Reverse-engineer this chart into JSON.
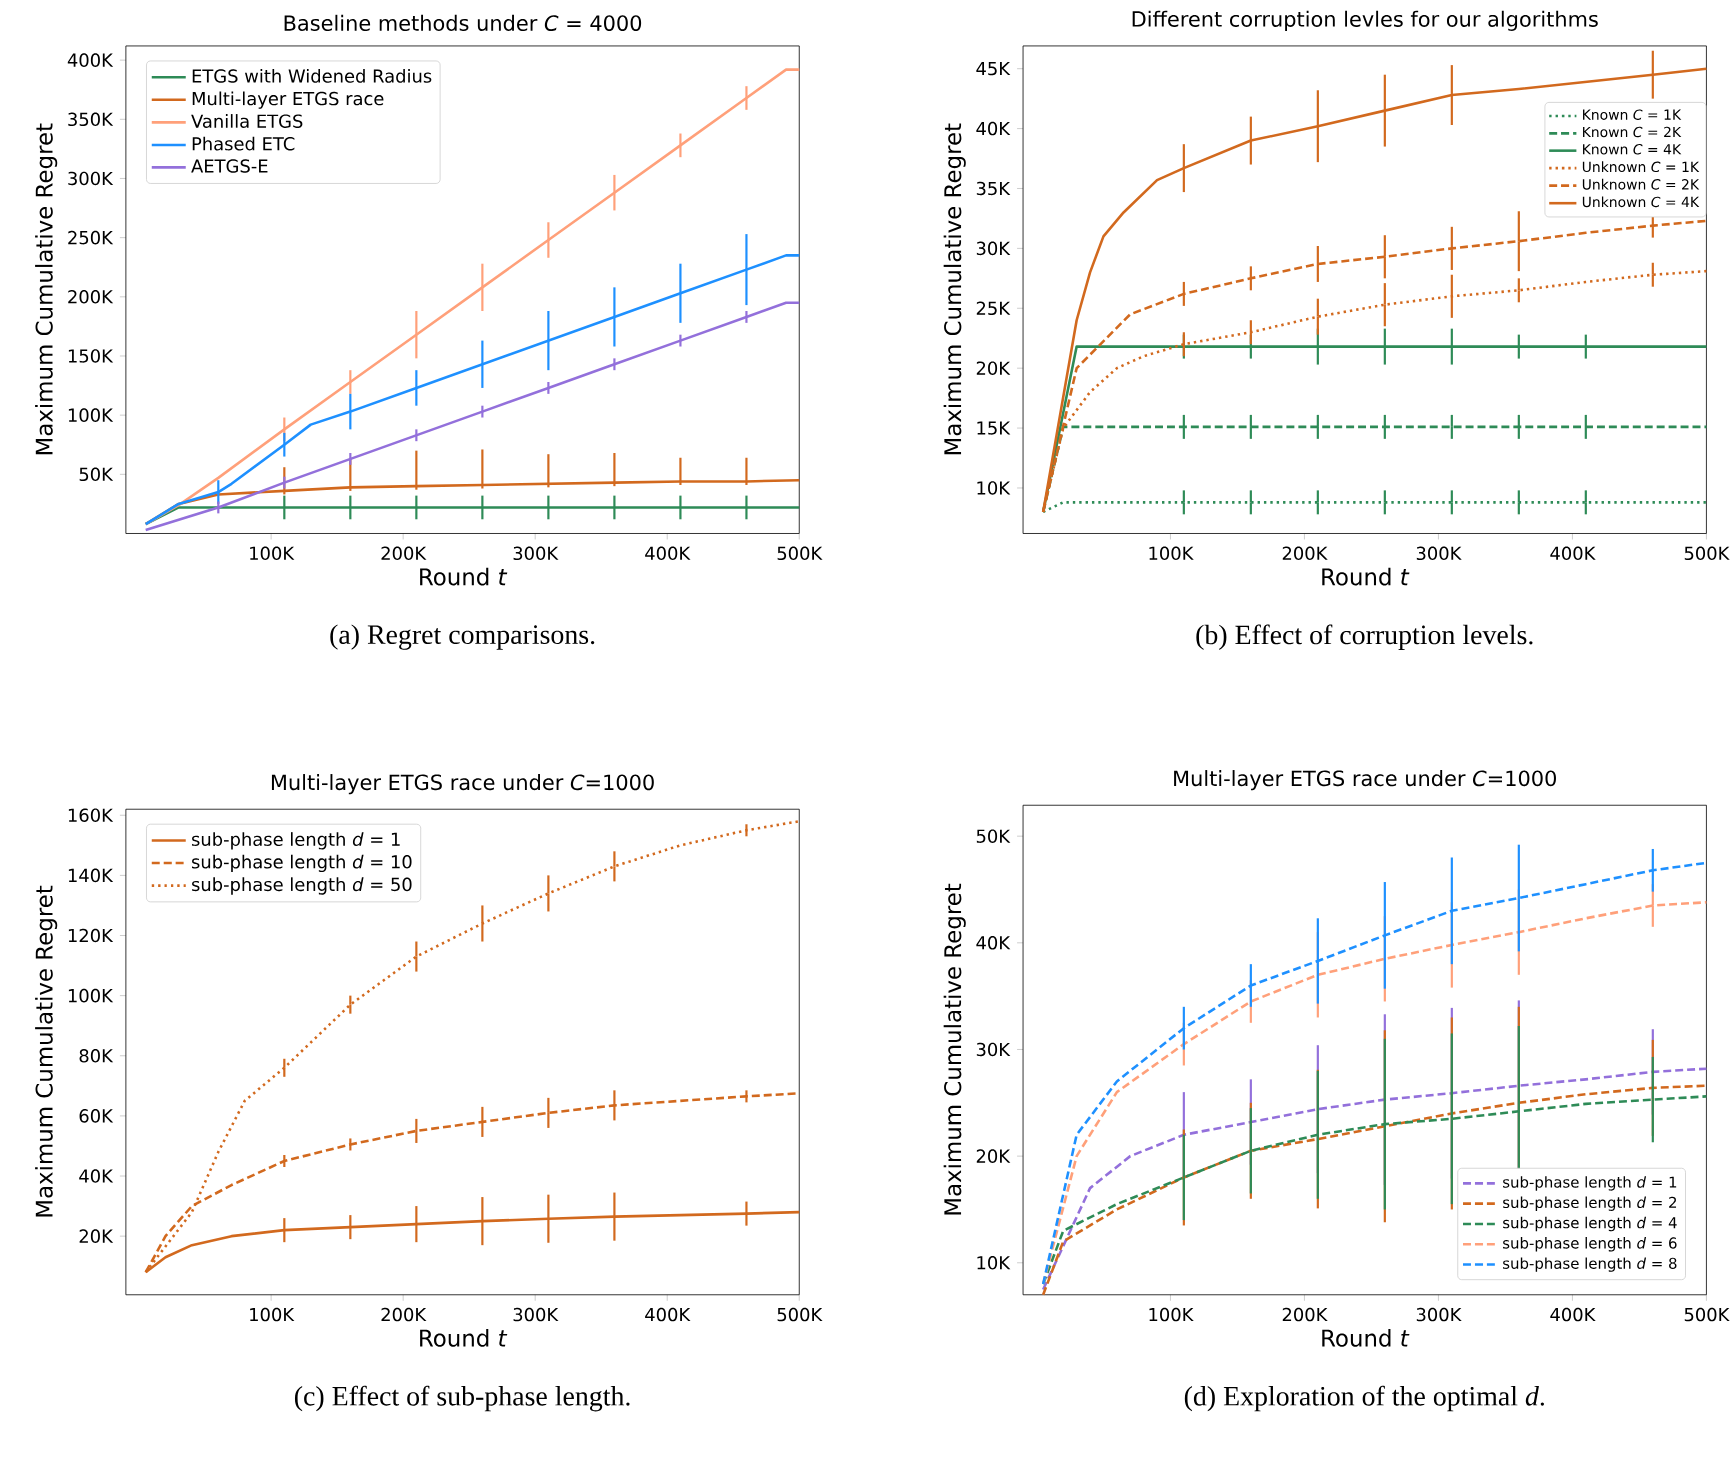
{
  "chart_data": [
    {
      "type": "line",
      "title": "Baseline methods under *C* = 4000",
      "xlabel": "Round *t*",
      "ylabel": "Maximum Cumulative Regret",
      "annotations": [
        "(a)  Regret comparisons."
      ],
      "legend": "top left",
      "xlim": [
        -10000,
        500000
      ],
      "ylim": [
        0,
        412000
      ],
      "xticks": [
        {
          "value": 100000,
          "label": "100K"
        },
        {
          "value": 200000,
          "label": "200K"
        },
        {
          "value": 300000,
          "label": "300K"
        },
        {
          "value": 400000,
          "label": "400K"
        },
        {
          "value": 500000,
          "label": "500K"
        }
      ],
      "yticks": [
        {
          "value": 50000,
          "label": "50K"
        },
        {
          "value": 100000,
          "label": "100K"
        },
        {
          "value": 150000,
          "label": "150K"
        },
        {
          "value": 200000,
          "label": "200K"
        },
        {
          "value": 250000,
          "label": "250K"
        },
        {
          "value": 300000,
          "label": "300K"
        },
        {
          "value": 350000,
          "label": "350K"
        },
        {
          "value": 400000,
          "label": "400K"
        }
      ],
      "series": [
        {
          "name": "ETGS with Widened Radius",
          "color": "#2e8b57",
          "line_style": "solid",
          "x": [
            5000,
            30000,
            110000,
            160000,
            210000,
            260000,
            310000,
            360000,
            410000,
            460000,
            500000
          ],
          "values": [
            8000,
            22000,
            22000,
            22000,
            22000,
            22000,
            22000,
            22000,
            22000,
            22000,
            22000
          ],
          "errors": [
            null,
            null,
            10000,
            10000,
            10000,
            10000,
            10000,
            10000,
            10000,
            10000,
            null
          ]
        },
        {
          "name": "Multi-layer ETGS race",
          "color": "#d2691e",
          "line_style": "solid",
          "x": [
            5000,
            30000,
            60000,
            110000,
            160000,
            210000,
            260000,
            310000,
            360000,
            410000,
            460000,
            500000
          ],
          "values": [
            8000,
            25000,
            33000,
            36000,
            39000,
            40000,
            41000,
            42000,
            43000,
            44000,
            44000,
            45000
          ],
          "errors": [
            null,
            null,
            null,
            [
              33000,
              56000
            ],
            [
              36000,
              64000
            ],
            [
              37000,
              70000
            ],
            [
              38000,
              71000
            ],
            [
              39000,
              67000
            ],
            [
              40000,
              68000
            ],
            [
              41000,
              64000
            ],
            [
              41000,
              64000
            ],
            null
          ]
        },
        {
          "name": "Vanilla ETGS",
          "color": "#ffa07a",
          "line_style": "solid",
          "x": [
            5000,
            30000,
            60000,
            110000,
            160000,
            210000,
            260000,
            310000,
            360000,
            410000,
            460000,
            490000,
            500000
          ],
          "values": [
            8000,
            24000,
            47000,
            88000,
            128000,
            168000,
            208000,
            248000,
            288000,
            328000,
            368000,
            392000,
            392000
          ],
          "errors": [
            null,
            null,
            null,
            10000,
            10000,
            20000,
            20000,
            15000,
            15000,
            10000,
            10000,
            null,
            null
          ]
        },
        {
          "name": "Phased ETC",
          "color": "#1e90ff",
          "line_style": "solid",
          "x": [
            5000,
            30000,
            60000,
            70000,
            110000,
            130000,
            160000,
            210000,
            260000,
            310000,
            360000,
            410000,
            460000,
            490000,
            500000
          ],
          "values": [
            8000,
            25000,
            35000,
            42000,
            75000,
            92000,
            103000,
            123000,
            143000,
            163000,
            183000,
            203000,
            223000,
            235000,
            235000
          ],
          "errors": [
            null,
            null,
            10000,
            null,
            10000,
            null,
            15000,
            15000,
            20000,
            25000,
            25000,
            25000,
            30000,
            null,
            null
          ]
        },
        {
          "name": "AETGS-E",
          "color": "#9370db",
          "line_style": "solid",
          "x": [
            5000,
            60000,
            110000,
            160000,
            210000,
            260000,
            310000,
            360000,
            410000,
            460000,
            490000,
            500000
          ],
          "values": [
            3000,
            22000,
            43000,
            63000,
            83000,
            103000,
            123000,
            143000,
            163000,
            183000,
            195000,
            195000
          ],
          "errors": [
            null,
            5000,
            5000,
            5000,
            5000,
            5000,
            5000,
            5000,
            5000,
            5000,
            null,
            null
          ]
        }
      ]
    },
    {
      "type": "line",
      "title": "Different corruption levles for our algorithms",
      "xlabel": "Round *t*",
      "ylabel": "Maximum Cumulative Regret",
      "annotations": [
        "(b)  Effect of corruption levels."
      ],
      "legend": "top right",
      "xlim": [
        -10000,
        500000
      ],
      "ylim": [
        6200,
        46900
      ],
      "xticks": [
        {
          "value": 100000,
          "label": "100K"
        },
        {
          "value": 200000,
          "label": "200K"
        },
        {
          "value": 300000,
          "label": "300K"
        },
        {
          "value": 400000,
          "label": "400K"
        },
        {
          "value": 500000,
          "label": "500K"
        }
      ],
      "yticks": [
        {
          "value": 10000,
          "label": "10K"
        },
        {
          "value": 15000,
          "label": "15K"
        },
        {
          "value": 20000,
          "label": "20K"
        },
        {
          "value": 25000,
          "label": "25K"
        },
        {
          "value": 30000,
          "label": "30K"
        },
        {
          "value": 35000,
          "label": "35K"
        },
        {
          "value": 40000,
          "label": "40K"
        },
        {
          "value": 45000,
          "label": "45K"
        }
      ],
      "series": [
        {
          "name": "Known *C* = 1K",
          "color": "#2e8b57",
          "line_style": "dotted",
          "x": [
            5000,
            20000,
            110000,
            160000,
            210000,
            260000,
            310000,
            360000,
            410000,
            500000
          ],
          "values": [
            8000,
            8800,
            8800,
            8800,
            8800,
            8800,
            8800,
            8800,
            8800,
            8800
          ],
          "errors": [
            null,
            null,
            1000,
            1000,
            1000,
            1000,
            1000,
            1000,
            1000,
            null
          ]
        },
        {
          "name": "Known *C* = 2K",
          "color": "#2e8b57",
          "line_style": "dashed",
          "x": [
            5000,
            20000,
            110000,
            160000,
            210000,
            260000,
            310000,
            360000,
            410000,
            500000
          ],
          "values": [
            8000,
            15100,
            15100,
            15100,
            15100,
            15100,
            15100,
            15100,
            15100,
            15100
          ],
          "errors": [
            null,
            null,
            1000,
            1000,
            1000,
            1000,
            1000,
            1000,
            1000,
            null
          ]
        },
        {
          "name": "Known *C* = 4K",
          "color": "#2e8b57",
          "line_style": "solid",
          "x": [
            5000,
            30000,
            110000,
            160000,
            210000,
            260000,
            310000,
            360000,
            410000,
            500000
          ],
          "values": [
            8000,
            21800,
            21800,
            21800,
            21800,
            21800,
            21800,
            21800,
            21800,
            21800
          ],
          "errors": [
            null,
            null,
            1000,
            1000,
            1500,
            1500,
            1500,
            1000,
            1000,
            null
          ]
        },
        {
          "name": "Unknown *C* = 1K",
          "color": "#d2691e",
          "line_style": "dotted",
          "x": [
            5000,
            20000,
            40000,
            60000,
            80000,
            110000,
            160000,
            210000,
            260000,
            310000,
            360000,
            410000,
            460000,
            500000
          ],
          "values": [
            8000,
            15000,
            18000,
            20000,
            21000,
            22000,
            23000,
            24300,
            25300,
            26000,
            26500,
            27200,
            27800,
            28100
          ],
          "errors": [
            null,
            null,
            null,
            null,
            null,
            1000,
            1000,
            1500,
            1800,
            1800,
            1000,
            null,
            1000,
            null
          ]
        },
        {
          "name": "Unknown *C* = 2K",
          "color": "#d2691e",
          "line_style": "dashed",
          "x": [
            5000,
            30000,
            70000,
            110000,
            160000,
            210000,
            260000,
            310000,
            360000,
            410000,
            460000,
            500000
          ],
          "values": [
            8000,
            20000,
            24500,
            26200,
            27500,
            28700,
            29300,
            30000,
            30600,
            31300,
            31900,
            32300
          ],
          "errors": [
            null,
            null,
            null,
            1000,
            1000,
            1500,
            1800,
            1800,
            2500,
            null,
            1000,
            null
          ]
        },
        {
          "name": "Unknown *C* = 4K",
          "color": "#d2691e",
          "line_style": "solid",
          "x": [
            5000,
            30000,
            40000,
            50000,
            65000,
            90000,
            110000,
            160000,
            210000,
            260000,
            310000,
            360000,
            460000,
            500000
          ],
          "values": [
            8000,
            24000,
            28000,
            31000,
            33000,
            35700,
            36700,
            39000,
            40200,
            41500,
            42800,
            43300,
            44500,
            45000
          ],
          "errors": [
            null,
            null,
            null,
            null,
            null,
            null,
            2000,
            2000,
            3000,
            3000,
            2500,
            null,
            2000,
            null
          ]
        }
      ]
    },
    {
      "type": "line",
      "title": "Multi-layer ETGS race under *C*=1000",
      "xlabel": "Round *t*",
      "ylabel": "Maximum Cumulative Regret",
      "annotations": [
        "(c)  Effect of sub-phase length."
      ],
      "legend": "top left",
      "xlim": [
        -10000,
        500000
      ],
      "ylim": [
        500,
        162000
      ],
      "xticks": [
        {
          "value": 100000,
          "label": "100K"
        },
        {
          "value": 200000,
          "label": "200K"
        },
        {
          "value": 300000,
          "label": "300K"
        },
        {
          "value": 400000,
          "label": "400K"
        },
        {
          "value": 500000,
          "label": "500K"
        }
      ],
      "yticks": [
        {
          "value": 20000,
          "label": "20K"
        },
        {
          "value": 40000,
          "label": "40K"
        },
        {
          "value": 60000,
          "label": "60K"
        },
        {
          "value": 80000,
          "label": "80K"
        },
        {
          "value": 100000,
          "label": "100K"
        },
        {
          "value": 120000,
          "label": "120K"
        },
        {
          "value": 140000,
          "label": "140K"
        },
        {
          "value": 160000,
          "label": "160K"
        }
      ],
      "series": [
        {
          "name": "sub-phase length *d* = 1",
          "color": "#d2691e",
          "line_style": "solid",
          "x": [
            5000,
            20000,
            40000,
            70000,
            110000,
            160000,
            210000,
            260000,
            310000,
            360000,
            460000,
            500000
          ],
          "values": [
            8000,
            13000,
            17000,
            20000,
            22000,
            23000,
            24000,
            25000,
            25800,
            26500,
            27500,
            28000
          ],
          "errors": [
            null,
            null,
            null,
            null,
            4000,
            4000,
            6000,
            8000,
            8000,
            8000,
            4000,
            null
          ]
        },
        {
          "name": "sub-phase length *d* = 10",
          "color": "#d2691e",
          "line_style": "dashed",
          "x": [
            5000,
            20000,
            40000,
            70000,
            110000,
            160000,
            210000,
            260000,
            310000,
            360000,
            460000,
            500000
          ],
          "values": [
            8000,
            20000,
            30000,
            37000,
            45000,
            50500,
            55000,
            58000,
            61000,
            63500,
            66500,
            67500
          ],
          "errors": [
            null,
            null,
            null,
            null,
            2000,
            2000,
            4000,
            5000,
            5000,
            5000,
            2000,
            null
          ]
        },
        {
          "name": "sub-phase length *d* = 50",
          "color": "#d2691e",
          "line_style": "dotted",
          "x": [
            5000,
            40000,
            60000,
            80000,
            110000,
            160000,
            210000,
            260000,
            310000,
            360000,
            410000,
            460000,
            500000
          ],
          "values": [
            8000,
            28000,
            48000,
            65000,
            76000,
            97000,
            113000,
            124000,
            134000,
            143000,
            150000,
            155000,
            158000
          ],
          "errors": [
            null,
            null,
            null,
            null,
            3000,
            3000,
            5000,
            6000,
            6000,
            5000,
            null,
            2000,
            null
          ]
        }
      ]
    },
    {
      "type": "line",
      "title": "Multi-layer ETGS race under *C*=1000",
      "xlabel": "Round *t*",
      "ylabel": "Maximum Cumulative Regret",
      "annotations": [
        "(d)  Exploration of the optimal *d*."
      ],
      "legend": "bottom right",
      "xlim": [
        -10000,
        500000
      ],
      "ylim": [
        7000,
        52900
      ],
      "xticks": [
        {
          "value": 100000,
          "label": "100K"
        },
        {
          "value": 200000,
          "label": "200K"
        },
        {
          "value": 300000,
          "label": "300K"
        },
        {
          "value": 400000,
          "label": "400K"
        },
        {
          "value": 500000,
          "label": "500K"
        }
      ],
      "yticks": [
        {
          "value": 10000,
          "label": "10K"
        },
        {
          "value": 20000,
          "label": "20K"
        },
        {
          "value": 30000,
          "label": "30K"
        },
        {
          "value": 40000,
          "label": "40K"
        },
        {
          "value": 50000,
          "label": "50K"
        }
      ],
      "series": [
        {
          "name": "sub-phase length *d* = 1",
          "color": "#9370db",
          "line_style": "dashed",
          "x": [
            5000,
            40000,
            70000,
            110000,
            160000,
            210000,
            260000,
            310000,
            360000,
            410000,
            460000,
            500000
          ],
          "values": [
            7500,
            17000,
            20000,
            22000,
            23200,
            24400,
            25300,
            25900,
            26600,
            27200,
            27900,
            28200
          ],
          "errors": [
            null,
            null,
            null,
            4000,
            4000,
            6000,
            8000,
            8000,
            8000,
            null,
            4000,
            null
          ]
        },
        {
          "name": "sub-phase length *d* = 2",
          "color": "#d2691e",
          "line_style": "dashed",
          "x": [
            5000,
            20000,
            60000,
            110000,
            160000,
            210000,
            260000,
            310000,
            360000,
            410000,
            460000,
            500000
          ],
          "values": [
            7000,
            12000,
            15000,
            18000,
            20500,
            21600,
            22800,
            24000,
            25000,
            25800,
            26400,
            26600
          ],
          "errors": [
            null,
            null,
            null,
            4500,
            4500,
            6500,
            9000,
            9000,
            9000,
            null,
            4500,
            null
          ]
        },
        {
          "name": "sub-phase length *d* = 4",
          "color": "#2e8b57",
          "line_style": "dashed",
          "x": [
            5000,
            20000,
            60000,
            110000,
            160000,
            210000,
            260000,
            310000,
            360000,
            410000,
            460000,
            500000
          ],
          "values": [
            8000,
            13000,
            15500,
            18000,
            20500,
            22000,
            23000,
            23500,
            24200,
            24900,
            25300,
            25600
          ],
          "errors": [
            null,
            null,
            null,
            4000,
            4000,
            6000,
            8000,
            8000,
            8000,
            null,
            4000,
            null
          ]
        },
        {
          "name": "sub-phase length *d* = 6",
          "color": "#ffa07a",
          "line_style": "dashed",
          "x": [
            5000,
            30000,
            60000,
            110000,
            160000,
            210000,
            260000,
            310000,
            360000,
            410000,
            460000,
            500000
          ],
          "values": [
            8000,
            20000,
            26000,
            30500,
            34500,
            37000,
            38500,
            39800,
            41000,
            42300,
            43500,
            43800
          ],
          "errors": [
            null,
            null,
            null,
            2000,
            2000,
            4000,
            4000,
            4000,
            4000,
            null,
            2000,
            null
          ]
        },
        {
          "name": "sub-phase length *d* = 8",
          "color": "#1e90ff",
          "line_style": "dashed",
          "x": [
            5000,
            30000,
            60000,
            110000,
            160000,
            210000,
            260000,
            310000,
            360000,
            410000,
            460000,
            500000
          ],
          "values": [
            8000,
            22000,
            27000,
            32000,
            36000,
            38300,
            40700,
            43000,
            44200,
            45500,
            46800,
            47500
          ],
          "errors": [
            null,
            null,
            null,
            2000,
            2000,
            4000,
            5000,
            5000,
            5000,
            null,
            2000,
            null
          ]
        }
      ]
    }
  ]
}
